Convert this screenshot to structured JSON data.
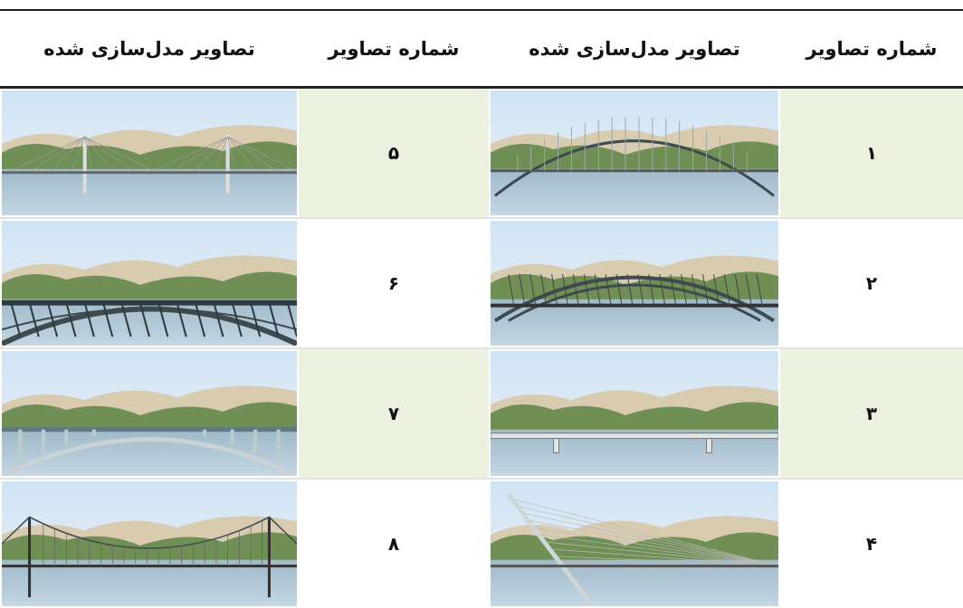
{
  "table": {
    "header": [
      "شماره تصاویر",
      "تصاویر مدل‌سازی شده",
      "شماره تصاویر",
      "تصاویر مدل‌سازی شده"
    ],
    "rows": [
      [
        "۱",
        "۵"
      ],
      [
        "۲",
        "۶"
      ],
      [
        "۳",
        "۷"
      ],
      [
        "۴",
        "۸"
      ]
    ]
  }
}
